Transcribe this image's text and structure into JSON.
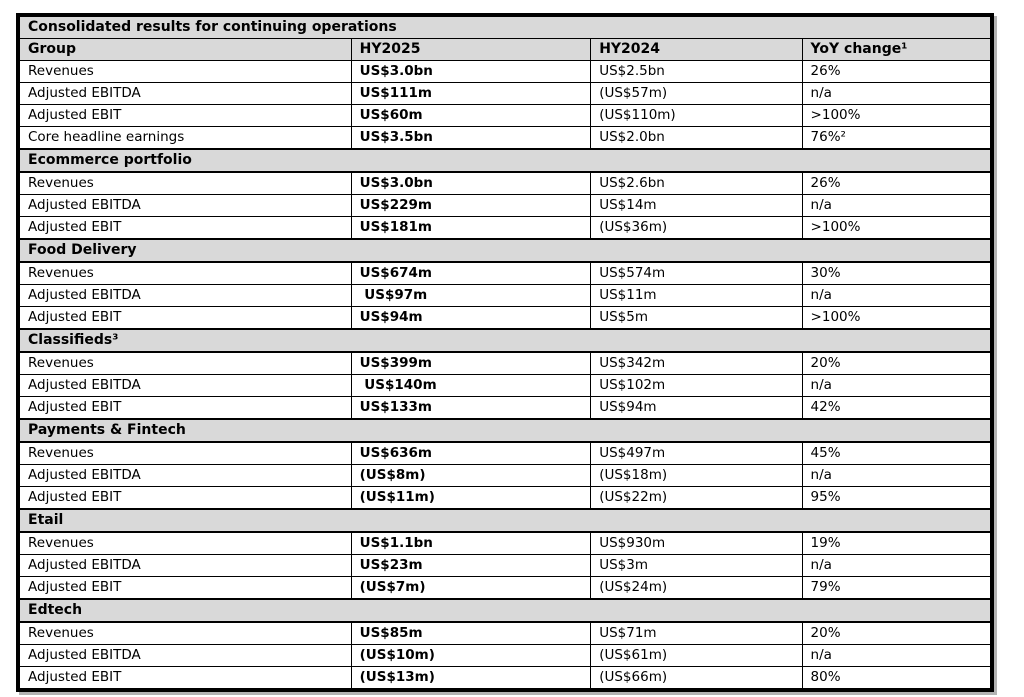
{
  "table": {
    "title": "Consolidated results for continuing operations",
    "columns": [
      "Group",
      "HY2025",
      "HY2024",
      "YoY change¹"
    ],
    "sections": [
      {
        "name": null,
        "rows": [
          [
            "Revenues",
            "US$3.0bn",
            "US$2.5bn",
            "26%"
          ],
          [
            "Adjusted EBITDA",
            "US$111m",
            "(US$57m)",
            "n/a"
          ],
          [
            "Adjusted EBIT",
            "US$60m",
            "(US$110m)",
            ">100%"
          ],
          [
            "Core headline earnings",
            "US$3.5bn",
            "US$2.0bn",
            "76%²"
          ]
        ]
      },
      {
        "name": "Ecommerce portfolio",
        "rows": [
          [
            "Revenues",
            "US$3.0bn",
            "US$2.6bn",
            "26%"
          ],
          [
            "Adjusted EBITDA",
            "US$229m",
            "US$14m",
            "n/a"
          ],
          [
            "Adjusted EBIT",
            "US$181m",
            "(US$36m)",
            ">100%"
          ]
        ]
      },
      {
        "name": "Food Delivery",
        "rows": [
          [
            "Revenues",
            "US$674m",
            "US$574m",
            "30%"
          ],
          [
            "Adjusted EBITDA",
            " US$97m",
            "US$11m",
            "n/a"
          ],
          [
            "Adjusted EBIT",
            "US$94m",
            "US$5m",
            ">100%"
          ]
        ]
      },
      {
        "name": "Classifieds³",
        "rows": [
          [
            "Revenues",
            "US$399m",
            "US$342m",
            "20%"
          ],
          [
            "Adjusted EBITDA",
            " US$140m",
            "US$102m",
            "n/a"
          ],
          [
            "Adjusted EBIT",
            "US$133m",
            "US$94m",
            "42%"
          ]
        ]
      },
      {
        "name": "Payments & Fintech",
        "rows": [
          [
            "Revenues",
            "US$636m",
            "US$497m",
            "45%"
          ],
          [
            "Adjusted EBITDA",
            "(US$8m)",
            "(US$18m)",
            "n/a"
          ],
          [
            "Adjusted EBIT",
            "(US$11m)",
            "(US$22m)",
            "95%"
          ]
        ]
      },
      {
        "name": "Etail",
        "rows": [
          [
            "Revenues",
            "US$1.1bn",
            "US$930m",
            "19%"
          ],
          [
            "Adjusted EBITDA",
            "US$23m",
            "US$3m",
            "n/a"
          ],
          [
            "Adjusted EBIT",
            "(US$7m)",
            "(US$24m)",
            "79%"
          ]
        ]
      },
      {
        "name": "Edtech",
        "rows": [
          [
            "Revenues",
            "US$85m",
            "US$71m",
            "20%"
          ],
          [
            "Adjusted EBITDA",
            "(US$10m)",
            "(US$61m)",
            "n/a"
          ],
          [
            "Adjusted EBIT",
            "(US$13m)",
            "(US$66m)",
            "80%"
          ]
        ]
      }
    ],
    "colors": {
      "band_background": "#d9d9d9",
      "border": "#000000",
      "shadow": "#b3b3b3"
    }
  }
}
